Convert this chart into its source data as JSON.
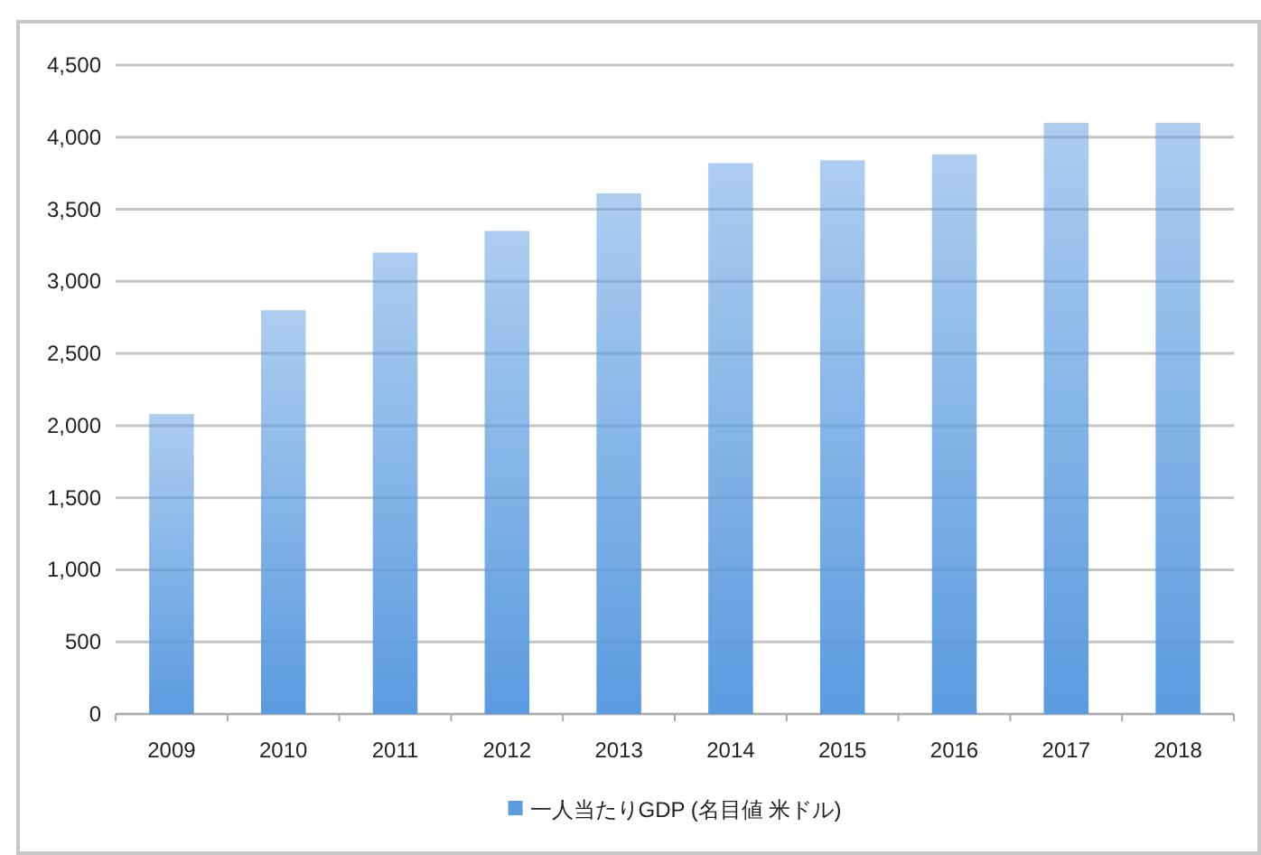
{
  "chart_data": {
    "type": "bar",
    "categories": [
      "2009",
      "2010",
      "2011",
      "2012",
      "2013",
      "2014",
      "2015",
      "2016",
      "2017",
      "2018"
    ],
    "series": [
      {
        "name": "一人当たりGDP (名目値 米ドル)",
        "color": "#5b9be0",
        "values": [
          2080,
          2800,
          3200,
          3350,
          3610,
          3820,
          3840,
          3880,
          4100,
          4100
        ]
      }
    ],
    "ylim": [
      0,
      4500
    ],
    "yticks": [
      {
        "value": 0,
        "label": "0"
      },
      {
        "value": 500,
        "label": "500"
      },
      {
        "value": 1000,
        "label": "1,000"
      },
      {
        "value": 1500,
        "label": "1,500"
      },
      {
        "value": 2000,
        "label": "2,000"
      },
      {
        "value": 2500,
        "label": "2,500"
      },
      {
        "value": 3000,
        "label": "3,000"
      },
      {
        "value": 3500,
        "label": "3,500"
      },
      {
        "value": 4000,
        "label": "4,000"
      },
      {
        "value": 4500,
        "label": "4,500"
      }
    ],
    "grid": "y",
    "legend": "bottom"
  }
}
